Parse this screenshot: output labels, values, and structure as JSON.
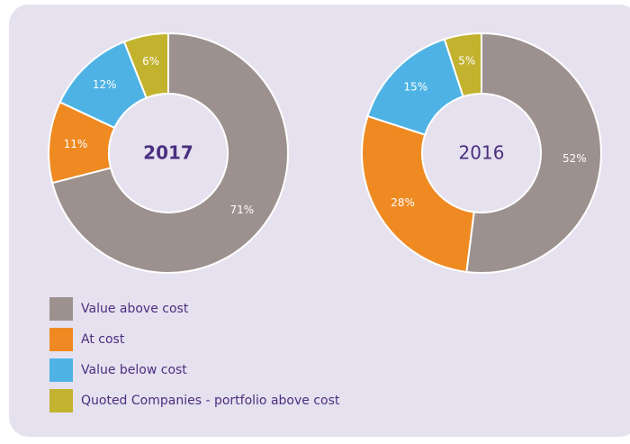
{
  "chart_data": [
    {
      "type": "donut",
      "title": "2017",
      "categories": [
        "Value above cost",
        "At cost",
        "Value below cost",
        "Quoted Companies - portfolio above cost"
      ],
      "values": [
        71,
        11,
        12,
        6
      ],
      "value_labels": [
        "71%",
        "11%",
        "12%",
        "6%"
      ],
      "colors": [
        "#9c918f",
        "#ef8a22",
        "#4eb3e4",
        "#c2b22e"
      ]
    },
    {
      "type": "donut",
      "title": "2016",
      "categories": [
        "Value above cost",
        "At cost",
        "Value below cost",
        "Quoted Companies - portfolio above cost"
      ],
      "values": [
        52,
        28,
        15,
        5
      ],
      "value_labels": [
        "52%",
        "28%",
        "15%",
        "5%"
      ],
      "colors": [
        "#9c918f",
        "#ef8a22",
        "#4eb3e4",
        "#c2b22e"
      ]
    }
  ]
}
